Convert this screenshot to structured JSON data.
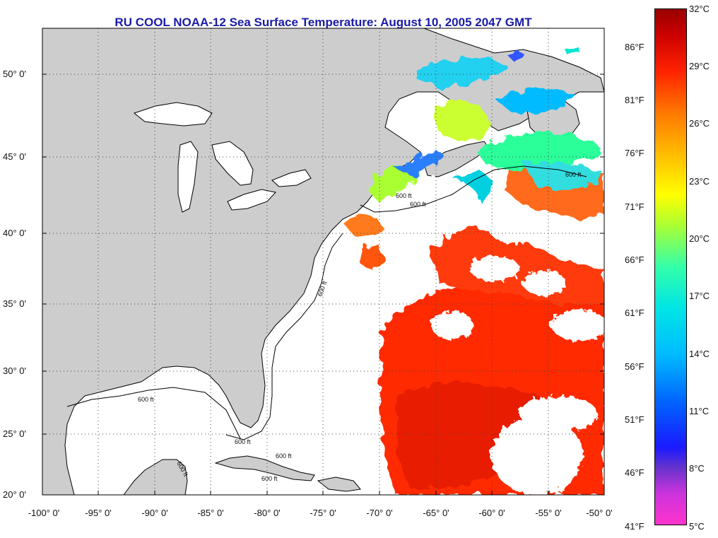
{
  "title": "RU COOL  NOAA-12  Sea Surface Temperature:  August 10, 2005 2047 GMT",
  "map": {
    "lon_range": [
      -100,
      -50
    ],
    "lat_range": [
      20,
      52.3
    ],
    "land_color": "#cdcdcd",
    "ocean_no_data_color": "#ffffff",
    "grid": "dotted",
    "lat_ticks": [
      "50° 0'",
      "45° 0'",
      "40° 0'",
      "35° 0'",
      "30° 0'",
      "25° 0'",
      "20° 0'"
    ],
    "lon_ticks": [
      "-100° 0'",
      "-95° 0'",
      "-90° 0'",
      "-85° 0'",
      "-80° 0'",
      "-75° 0'",
      "-70° 0'",
      "-65° 0'",
      "-60° 0'",
      "-55° 0'",
      "-50° 0'"
    ],
    "contour_labels": [
      "600 ft",
      "600 ft",
      "600 ft",
      "600 ft",
      "600 ft",
      "600 ft",
      "600 ft",
      "600 ft",
      "600 ft"
    ]
  },
  "colorbar": {
    "range_c": [
      5,
      32
    ],
    "fahrenheit_labels": [
      "86°F",
      "81°F",
      "76°F",
      "71°F",
      "66°F",
      "61°F",
      "56°F",
      "51°F",
      "46°F",
      "41°F"
    ],
    "celsius_labels": [
      "32°C",
      "29°C",
      "26°C",
      "23°C",
      "20°C",
      "17°C",
      "14°C",
      "11°C",
      "8°C",
      "5°C"
    ]
  }
}
